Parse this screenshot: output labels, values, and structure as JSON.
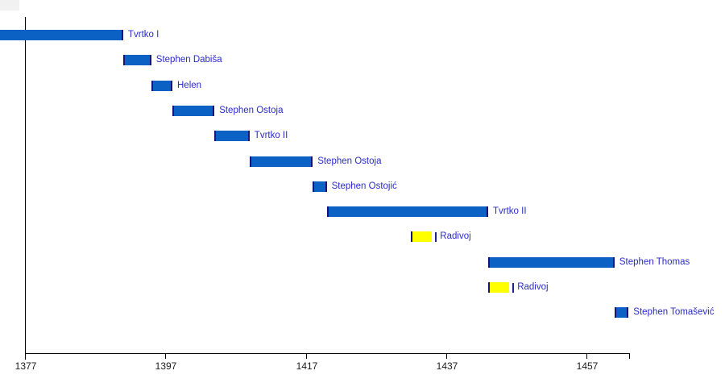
{
  "chart_data": {
    "type": "bar",
    "subtype": "horizontal-timeline-gantt",
    "title": "",
    "xlabel": "",
    "ylabel": "",
    "xlim": [
      1377,
      1463
    ],
    "x_ticks": [
      1377,
      1397,
      1417,
      1437,
      1457
    ],
    "grid": false,
    "legend": "none",
    "series": [
      {
        "label": "Tvrtko I",
        "start": 1353,
        "end": 1391,
        "role": "king",
        "color": "blue",
        "start_clipped_at_left_edge": true
      },
      {
        "label": "Stephen Dabiša",
        "start": 1391,
        "end": 1395,
        "role": "king",
        "color": "blue"
      },
      {
        "label": "Helen",
        "start": 1395,
        "end": 1398,
        "role": "king",
        "color": "blue"
      },
      {
        "label": "Stephen Ostoja",
        "start": 1398,
        "end": 1404,
        "role": "king",
        "color": "blue"
      },
      {
        "label": "Tvrtko II",
        "start": 1404,
        "end": 1409,
        "role": "king",
        "color": "blue"
      },
      {
        "label": "Stephen Ostoja",
        "start": 1409,
        "end": 1418,
        "role": "king",
        "color": "blue"
      },
      {
        "label": "Stephen Ostojić",
        "start": 1418,
        "end": 1420,
        "role": "king",
        "color": "blue"
      },
      {
        "label": "Tvrtko II",
        "start": 1420,
        "end": 1443,
        "role": "king",
        "color": "blue"
      },
      {
        "label": "Radivoj",
        "start": 1432,
        "end": 1435,
        "role": "claimant",
        "color": "yellow",
        "end_mark": true
      },
      {
        "label": "Stephen Thomas",
        "start": 1443,
        "end": 1461,
        "role": "king",
        "color": "blue"
      },
      {
        "label": "Radivoj",
        "start": 1443,
        "end": 1446,
        "role": "claimant",
        "color": "yellow",
        "end_mark": true
      },
      {
        "label": "Stephen Tomašević",
        "start": 1461,
        "end": 1463,
        "role": "king",
        "color": "blue"
      }
    ],
    "colors": {
      "bar_blue": "#0b62c4",
      "bar_yellow": "#ffff00",
      "bar_edge_navy": "#14147a",
      "label_text": "#2a2ac8",
      "axis": "#000000"
    }
  }
}
